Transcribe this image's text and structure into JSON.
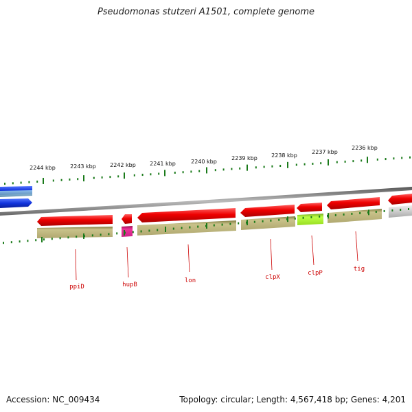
{
  "title": "Pseudomonas stutzeri A1501, complete genome",
  "footer": {
    "accession_label": "Accession:",
    "accession": "NC_009434",
    "topology_label": "Topology:",
    "topology": "circular",
    "length_label": "Length:",
    "length": "4,567,418 bp",
    "genes_label": "Genes:",
    "genes": "4,201"
  },
  "ruler": {
    "unit": "kbp",
    "labels": [
      "2244 kbp",
      "2243 kbp",
      "2242 kbp",
      "2241 kbp",
      "2240 kbp",
      "2239 kbp",
      "2238 kbp",
      "2237 kbp",
      "2236 kbp"
    ],
    "tick_color": "#1a7a1a"
  },
  "genes": [
    {
      "name": "ppiD",
      "strand": "reverse",
      "color": "#dd0000",
      "cog_color": "#b8b070"
    },
    {
      "name": "hupB",
      "strand": "reverse",
      "color": "#dd0000",
      "cog_color": "#cc2288"
    },
    {
      "name": "lon",
      "strand": "reverse",
      "color": "#dd0000",
      "cog_color": "#b8b070"
    },
    {
      "name": "clpX",
      "strand": "reverse",
      "color": "#dd0000",
      "cog_color": "#b8b070"
    },
    {
      "name": "clpP",
      "strand": "reverse",
      "color": "#dd0000",
      "cog_color": "#aaee33"
    },
    {
      "name": "tig",
      "strand": "reverse",
      "color": "#dd0000",
      "cog_color": "#b8b070"
    }
  ],
  "colors": {
    "backbone": "#888888",
    "forward_gene": "#1133dd",
    "gene_label": "#cc0000"
  }
}
